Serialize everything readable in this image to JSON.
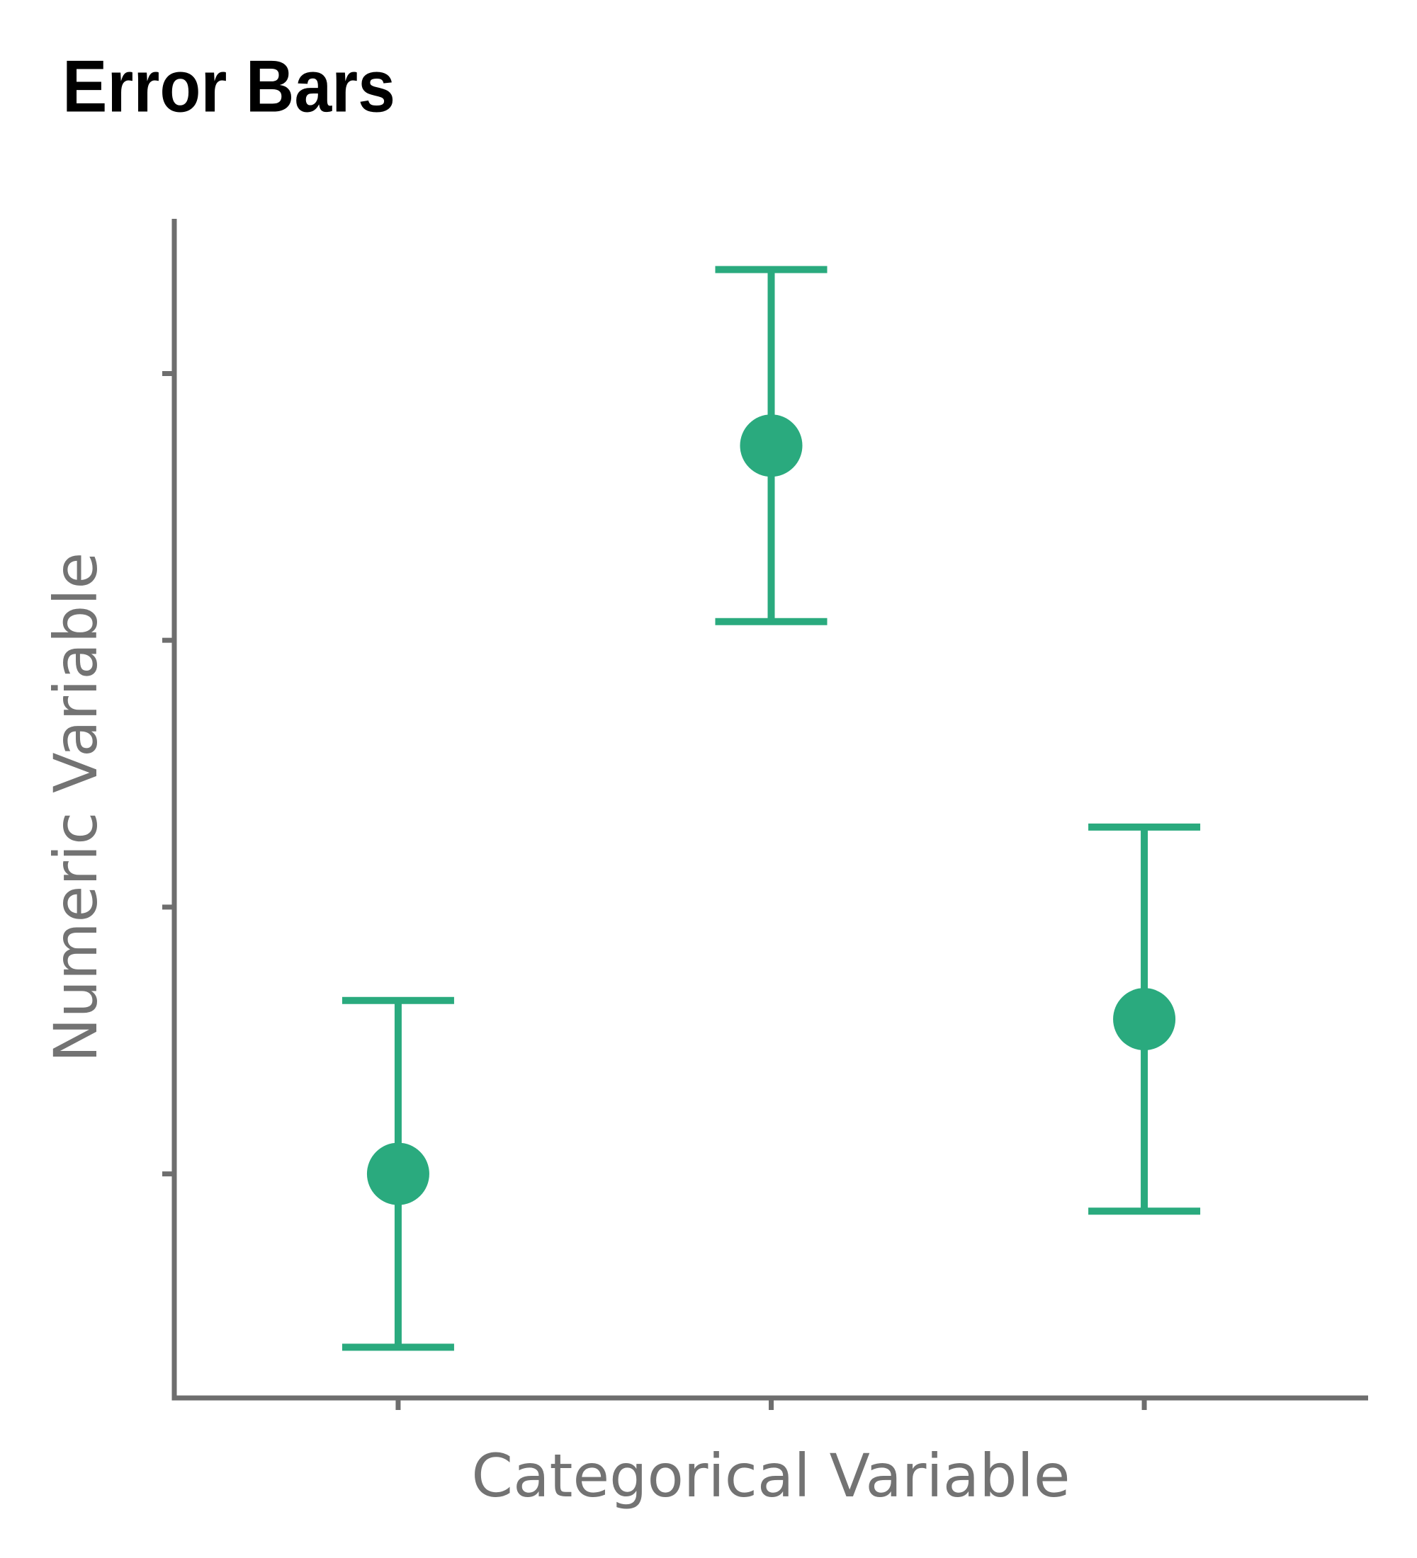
{
  "chart_data": {
    "type": "errorbar",
    "title": "Error Bars",
    "x_label": "Categorical Variable",
    "y_label": "Numeric Variable",
    "categories": [
      null,
      null,
      null
    ],
    "values": [
      1.0,
      3.73,
      1.58
    ],
    "errors": [
      0.65,
      0.66,
      0.72
    ],
    "color": "#2aaa7e",
    "ylim": [
      0.16,
      4.58
    ],
    "yticks": [
      1,
      2,
      3,
      4
    ],
    "grid": false
  }
}
